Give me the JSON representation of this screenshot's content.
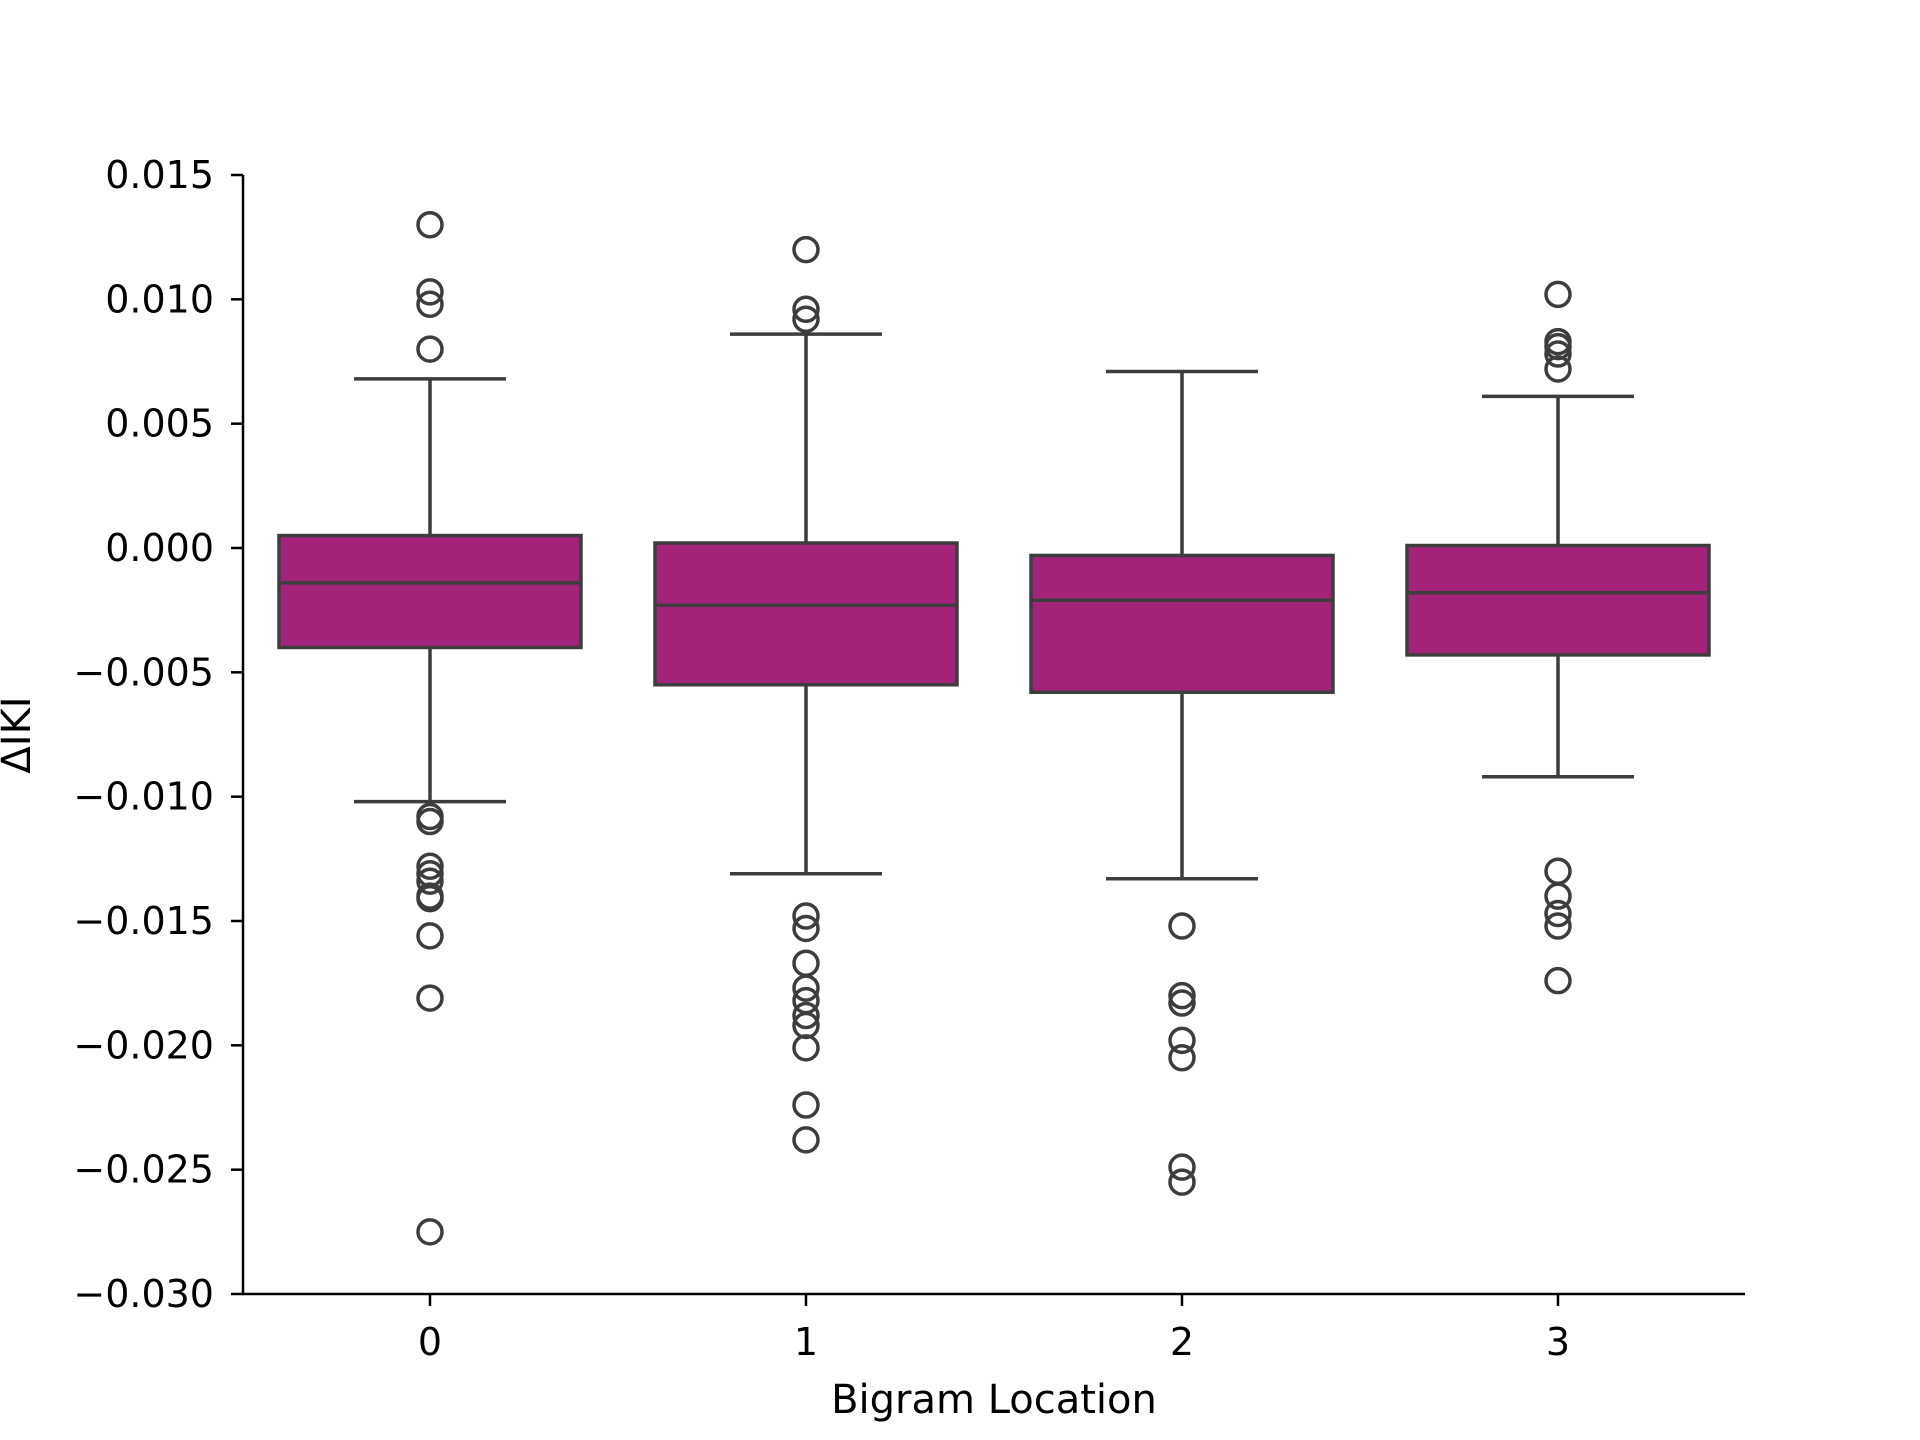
{
  "chart_data": {
    "type": "box",
    "xlabel": "Bigram Location",
    "ylabel": "ΔIKI",
    "ylim": [
      -0.03,
      0.015
    ],
    "yticks": [
      0.015,
      0.01,
      0.005,
      0.0,
      -0.005,
      -0.01,
      -0.015,
      -0.02,
      -0.025,
      -0.03
    ],
    "ytick_labels": [
      "0.015",
      "0.010",
      "0.005",
      "0.000",
      "−0.005",
      "−0.010",
      "−0.015",
      "−0.020",
      "−0.025",
      "−0.030"
    ],
    "categories": [
      "0",
      "1",
      "2",
      "3"
    ],
    "box_color": "#a4237a",
    "line_color": "#3d3d3d",
    "grid": false,
    "boxes": [
      {
        "category": "0",
        "whisker_low": -0.0102,
        "q1": -0.004,
        "median": -0.0014,
        "q3": 0.0005,
        "whisker_high": 0.0068,
        "outliers": [
          0.013,
          0.0103,
          0.0098,
          0.008,
          -0.0108,
          -0.011,
          -0.0128,
          -0.0131,
          -0.0134,
          -0.014,
          -0.0141,
          -0.0156,
          -0.0181,
          -0.0275
        ]
      },
      {
        "category": "1",
        "whisker_low": -0.0131,
        "q1": -0.0055,
        "median": -0.0023,
        "q3": 0.0002,
        "whisker_high": 0.0086,
        "outliers": [
          0.012,
          0.0096,
          0.0092,
          -0.0148,
          -0.0153,
          -0.0167,
          -0.0177,
          -0.0182,
          -0.0188,
          -0.0192,
          -0.0201,
          -0.0224,
          -0.0238
        ]
      },
      {
        "category": "2",
        "whisker_low": -0.0133,
        "q1": -0.0058,
        "median": -0.0021,
        "q3": -0.0003,
        "whisker_high": 0.0071,
        "outliers": [
          -0.0152,
          -0.018,
          -0.0183,
          -0.0198,
          -0.0205,
          -0.0249,
          -0.0255
        ]
      },
      {
        "category": "3",
        "whisker_low": -0.0092,
        "q1": -0.0043,
        "median": -0.0018,
        "q3": 0.0001,
        "whisker_high": 0.0061,
        "outliers": [
          0.0102,
          0.0083,
          0.0081,
          0.0078,
          0.0072,
          -0.013,
          -0.014,
          -0.0147,
          -0.0152,
          -0.0174
        ]
      }
    ]
  }
}
